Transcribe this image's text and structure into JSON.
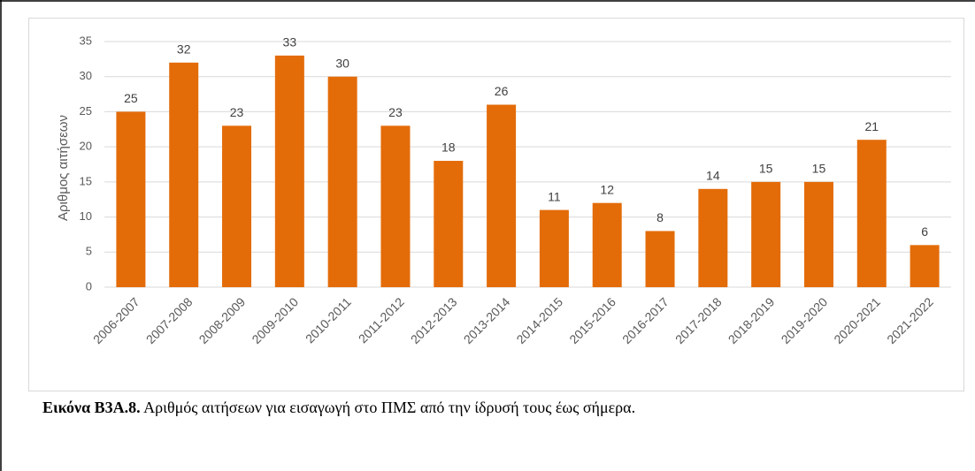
{
  "chart_data": {
    "type": "bar",
    "ylabel": "Αριθμος αιτήσεων",
    "categories": [
      "2006-2007",
      "2007-2008",
      "2008-2009",
      "2009-2010",
      "2010-2011",
      "2011-2012",
      "2012-2013",
      "2013-2014",
      "2014-2015",
      "2015-2016",
      "2016-2017",
      "2017-2018",
      "2018-2019",
      "2019-2020",
      "2020-2021",
      "2021-2022"
    ],
    "values": [
      25,
      32,
      23,
      33,
      30,
      23,
      18,
      26,
      11,
      12,
      8,
      14,
      15,
      15,
      21,
      6
    ],
    "color": "#e36c09",
    "ylim": [
      0,
      35
    ],
    "yticks": [
      0,
      5,
      10,
      15,
      20,
      25,
      30,
      35
    ],
    "grid": true
  },
  "caption": {
    "label": "Εικόνα Β3Α.8.",
    "text": " Αριθμός αιτήσεων για εισαγωγή στο ΠΜΣ από την ίδρυσή τους έως σήμερα."
  }
}
